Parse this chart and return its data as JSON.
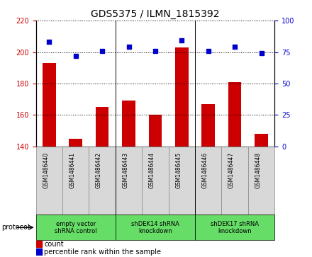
{
  "title": "GDS5375 / ILMN_1815392",
  "samples": [
    "GSM1486440",
    "GSM1486441",
    "GSM1486442",
    "GSM1486443",
    "GSM1486444",
    "GSM1486445",
    "GSM1486446",
    "GSM1486447",
    "GSM1486448"
  ],
  "counts": [
    193,
    145,
    165,
    169,
    160,
    203,
    167,
    181,
    148
  ],
  "percentile_ranks": [
    83,
    72,
    76,
    79,
    76,
    84,
    76,
    79,
    74
  ],
  "ylim_left": [
    140,
    220
  ],
  "ylim_right": [
    0,
    100
  ],
  "yticks_left": [
    140,
    160,
    180,
    200,
    220
  ],
  "yticks_right": [
    0,
    25,
    50,
    75,
    100
  ],
  "bar_color": "#cc0000",
  "dot_color": "#0000cc",
  "grid_color": "#000000",
  "bg_color": "#ffffff",
  "sample_box_color": "#d8d8d8",
  "protocol_box_color": "#66dd66",
  "protocol_groups": [
    {
      "label": "empty vector\nshRNA control",
      "start": 0,
      "end": 3
    },
    {
      "label": "shDEK14 shRNA\nknockdown",
      "start": 3,
      "end": 6
    },
    {
      "label": "shDEK17 shRNA\nknockdown",
      "start": 6,
      "end": 9
    }
  ],
  "protocol_label": "protocol",
  "legend_count_label": "count",
  "legend_pct_label": "percentile rank within the sample",
  "title_fontsize": 10,
  "tick_fontsize": 7,
  "bar_width": 0.5
}
